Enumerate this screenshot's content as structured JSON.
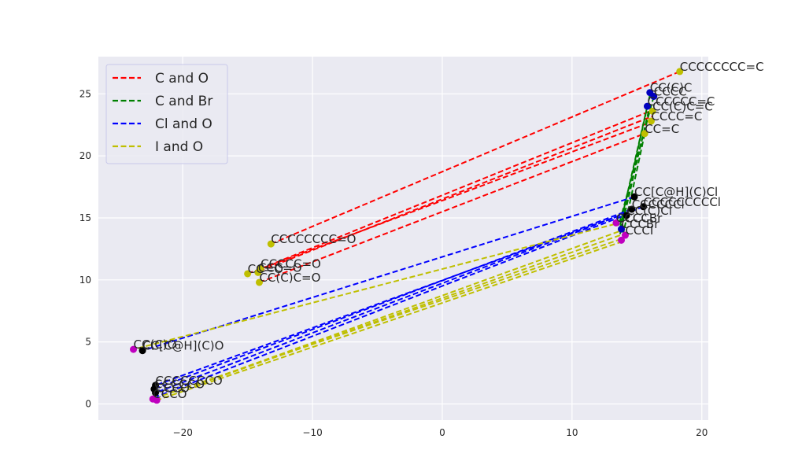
{
  "chart_data": {
    "type": "scatter",
    "title": "",
    "xlabel": "",
    "ylabel": "",
    "xlim": [
      -26.5,
      20.5
    ],
    "ylim": [
      -1.3,
      28.0
    ],
    "xticks": [
      -20,
      -10,
      0,
      10,
      20
    ],
    "yticks": [
      0,
      5,
      10,
      15,
      20,
      25
    ],
    "grid": true,
    "legend_position": "top-left",
    "background": "#eaeaf2",
    "point_colors": {
      "y": "#bfbf00",
      "b": "#0000bf",
      "k": "#000000",
      "m": "#bf00bf"
    },
    "series": [
      {
        "name": "C and O",
        "color": "#ff0000",
        "pairs": [
          {
            "from": [
              -13.2,
              12.9
            ],
            "to": [
              18.3,
              26.8
            ]
          },
          {
            "from": [
              -14.0,
              10.9
            ],
            "to": [
              16.0,
              23.6
            ]
          },
          {
            "from": [
              -14.1,
              10.7
            ],
            "to": [
              16.2,
              23.2
            ]
          },
          {
            "from": [
              -15.0,
              10.5
            ],
            "to": [
              16.3,
              22.8
            ]
          },
          {
            "from": [
              -14.1,
              9.8
            ],
            "to": [
              15.6,
              21.8
            ]
          }
        ]
      },
      {
        "name": "C and Br",
        "color": "#008000",
        "pairs": [
          {
            "from": [
              16.3,
              24.8
            ],
            "to": [
              13.6,
              14.4
            ]
          },
          {
            "from": [
              16.0,
              24.9
            ],
            "to": [
              13.7,
              14.1
            ]
          },
          {
            "from": [
              15.8,
              24.0
            ],
            "to": [
              13.6,
              13.9
            ]
          },
          {
            "from": [
              15.9,
              23.6
            ],
            "to": [
              13.7,
              13.7
            ]
          },
          {
            "from": [
              15.6,
              21.8
            ],
            "to": [
              13.9,
              13.5
            ]
          }
        ]
      },
      {
        "name": "Cl and O",
        "color": "#0000ff",
        "pairs": [
          {
            "from": [
              14.8,
              16.7
            ],
            "to": [
              -23.1,
              4.3
            ]
          },
          {
            "from": [
              15.5,
              15.9
            ],
            "to": [
              -22.1,
              1.5
            ]
          },
          {
            "from": [
              14.6,
              15.7
            ],
            "to": [
              -22.2,
              1.2
            ]
          },
          {
            "from": [
              14.2,
              15.4
            ],
            "to": [
              -22.1,
              0.9
            ]
          },
          {
            "from": [
              13.8,
              15.1
            ],
            "to": [
              -22.0,
              0.6
            ]
          }
        ]
      },
      {
        "name": "I and O",
        "color": "#bfbf00",
        "pairs": [
          {
            "from": [
              13.3,
              14.5
            ],
            "to": [
              -23.8,
              4.4
            ]
          },
          {
            "from": [
              13.6,
              13.9
            ],
            "to": [
              -18.8,
              1.6
            ]
          },
          {
            "from": [
              13.7,
              13.6
            ],
            "to": [
              -19.3,
              1.4
            ]
          },
          {
            "from": [
              13.8,
              13.3
            ],
            "to": [
              -21.5,
              0.7
            ]
          },
          {
            "from": [
              13.9,
              13.1
            ],
            "to": [
              -22.0,
              0.3
            ]
          }
        ]
      }
    ],
    "points": [
      {
        "x": 18.3,
        "y": 26.8,
        "color": "y",
        "label": "CCCCCCCC=C"
      },
      {
        "x": 16.0,
        "y": 25.1,
        "color": "b",
        "label": "CC(C)C"
      },
      {
        "x": 16.3,
        "y": 24.8,
        "color": "b",
        "label": "CCCC"
      },
      {
        "x": 15.8,
        "y": 24.0,
        "color": "b",
        "label": "CCCCCC=C"
      },
      {
        "x": 16.2,
        "y": 23.6,
        "color": "y",
        "label": "CC(C)C=C"
      },
      {
        "x": 16.1,
        "y": 22.8,
        "color": "y",
        "label": "CCCC=C"
      },
      {
        "x": 15.6,
        "y": 21.8,
        "color": "y",
        "label": "CC=C"
      },
      {
        "x": 14.8,
        "y": 16.7,
        "color": "k",
        "label": "CC[C@H](C)Cl"
      },
      {
        "x": 15.5,
        "y": 15.9,
        "color": "k",
        "label": "CCCCCCCCCl"
      },
      {
        "x": 14.6,
        "y": 15.7,
        "color": "k",
        "label": "CCCCCCl"
      },
      {
        "x": 14.2,
        "y": 15.2,
        "color": "k",
        "label": "CC(C)Cl"
      },
      {
        "x": 13.4,
        "y": 14.6,
        "color": "m",
        "label": "CCCCBr"
      },
      {
        "x": 13.8,
        "y": 14.1,
        "color": "b",
        "label": "CCCBr"
      },
      {
        "x": 14.1,
        "y": 13.6,
        "color": "m",
        "label": "CCCI"
      },
      {
        "x": 13.8,
        "y": 13.2,
        "color": "m",
        "label": ""
      },
      {
        "x": -13.2,
        "y": 12.9,
        "color": "y",
        "label": "CCCCCCCC=O"
      },
      {
        "x": -14.0,
        "y": 10.9,
        "color": "y",
        "label": "CCCCC=O"
      },
      {
        "x": -15.0,
        "y": 10.5,
        "color": "y",
        "label": "CC=O"
      },
      {
        "x": -14.2,
        "y": 10.6,
        "color": "y",
        "label": "CCC=O"
      },
      {
        "x": -14.1,
        "y": 9.8,
        "color": "y",
        "label": "CC(C)C=O"
      },
      {
        "x": -23.8,
        "y": 4.4,
        "color": "m",
        "label": "CC(C)O"
      },
      {
        "x": -23.1,
        "y": 4.3,
        "color": "k",
        "label": "CC[C@H](C)O"
      },
      {
        "x": -22.1,
        "y": 1.5,
        "color": "k",
        "label": "CCCCCCCO"
      },
      {
        "x": -22.2,
        "y": 1.2,
        "color": "k",
        "label": "CCCCCO"
      },
      {
        "x": -22.1,
        "y": 0.9,
        "color": "k",
        "label": "CCCO"
      },
      {
        "x": -22.3,
        "y": 0.4,
        "color": "m",
        "label": "CCCO"
      },
      {
        "x": -22.0,
        "y": 0.3,
        "color": "m",
        "label": ""
      }
    ]
  }
}
